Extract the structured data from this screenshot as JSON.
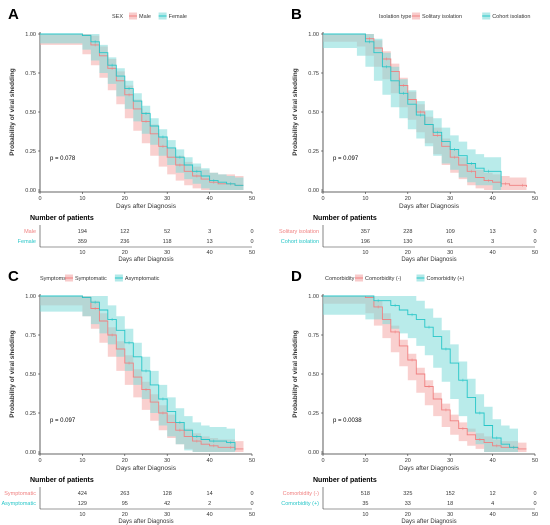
{
  "colors": {
    "group1": "#f08080",
    "group2": "#26c6c8",
    "band1": "#f4a9a8",
    "band2": "#7fdad9",
    "axis": "#333333",
    "text": "#333333"
  },
  "chart_data": [
    {
      "type": "line",
      "panel_label": "A",
      "legend_title": "SEX",
      "series": [
        {
          "name": "Male",
          "x": [
            0,
            10,
            12,
            14,
            16,
            18,
            20,
            22,
            24,
            26,
            28,
            30,
            32,
            34,
            36,
            38,
            40,
            42,
            44,
            46,
            48
          ],
          "y": [
            1.0,
            0.99,
            0.93,
            0.86,
            0.78,
            0.7,
            0.61,
            0.52,
            0.44,
            0.36,
            0.28,
            0.21,
            0.16,
            0.12,
            0.09,
            0.07,
            0.05,
            0.04,
            0.04,
            0.03,
            0.03
          ]
        },
        {
          "name": "Female",
          "x": [
            0,
            10,
            12,
            14,
            16,
            18,
            20,
            22,
            24,
            26,
            28,
            30,
            32,
            34,
            36,
            38,
            40,
            42,
            44,
            46,
            48
          ],
          "y": [
            1.0,
            0.99,
            0.95,
            0.88,
            0.8,
            0.73,
            0.65,
            0.57,
            0.49,
            0.41,
            0.34,
            0.27,
            0.21,
            0.16,
            0.12,
            0.09,
            0.06,
            0.05,
            0.04,
            0.03,
            0.03
          ]
        }
      ],
      "ci_width": [
        0.06,
        0.05
      ],
      "xlabel": "Days after Diagnosis",
      "ylabel": "Probability of viral shedding",
      "xlim": [
        0,
        50
      ],
      "ylim": [
        0,
        1
      ],
      "x_ticks": [
        "0",
        "10",
        "20",
        "30",
        "40",
        "50"
      ],
      "y_ticks": [
        "0.00",
        "0.25",
        "0.50",
        "0.75",
        "1.00"
      ],
      "p_value": "p = 0.078",
      "risk_table_title": "Number of patients",
      "risk_rows": [
        {
          "label": "Male",
          "counts": [
            "194",
            "122",
            "52",
            "3",
            "0"
          ]
        },
        {
          "label": "Female",
          "counts": [
            "359",
            "236",
            "118",
            "13",
            "0"
          ]
        }
      ]
    },
    {
      "type": "line",
      "panel_label": "B",
      "legend_title": "Isolation type",
      "series": [
        {
          "name": "Solitary isolation",
          "x": [
            0,
            8,
            10,
            12,
            14,
            16,
            18,
            20,
            22,
            24,
            26,
            28,
            30,
            32,
            34,
            36,
            38,
            40,
            42,
            44,
            46,
            48
          ],
          "y": [
            1.0,
            1.0,
            0.97,
            0.91,
            0.84,
            0.76,
            0.67,
            0.58,
            0.5,
            0.42,
            0.35,
            0.28,
            0.21,
            0.16,
            0.12,
            0.08,
            0.06,
            0.05,
            0.04,
            0.03,
            0.03,
            0.02
          ]
        },
        {
          "name": "Cohort isolation",
          "x": [
            0,
            8,
            10,
            12,
            14,
            16,
            18,
            20,
            22,
            24,
            26,
            28,
            30,
            32,
            34,
            36,
            38,
            40,
            42
          ],
          "y": [
            1.0,
            1.0,
            0.95,
            0.88,
            0.79,
            0.7,
            0.62,
            0.55,
            0.48,
            0.42,
            0.37,
            0.31,
            0.26,
            0.22,
            0.17,
            0.14,
            0.12,
            0.12,
            0.02
          ]
        }
      ],
      "ci_width": [
        0.05,
        0.09
      ],
      "xlabel": "Days after Diagnosis",
      "ylabel": "Probability of viral shedding",
      "xlim": [
        0,
        50
      ],
      "ylim": [
        0,
        1
      ],
      "x_ticks": [
        "0",
        "10",
        "20",
        "30",
        "40",
        "50"
      ],
      "y_ticks": [
        "0.00",
        "0.25",
        "0.50",
        "0.75",
        "1.00"
      ],
      "p_value": "p = 0.097",
      "risk_table_title": "Number of patients",
      "risk_rows": [
        {
          "label": "Solitary isolation",
          "counts": [
            "357",
            "228",
            "109",
            "13",
            "0"
          ]
        },
        {
          "label": "Cohort isolation",
          "counts": [
            "196",
            "130",
            "61",
            "3",
            "0"
          ]
        }
      ]
    },
    {
      "type": "line",
      "panel_label": "C",
      "legend_title": "Symptoms",
      "series": [
        {
          "name": "Symptomatic",
          "x": [
            0,
            10,
            12,
            14,
            16,
            18,
            20,
            22,
            24,
            26,
            28,
            30,
            32,
            34,
            36,
            38,
            40,
            42,
            44,
            46,
            48
          ],
          "y": [
            1.0,
            0.99,
            0.92,
            0.84,
            0.75,
            0.66,
            0.57,
            0.48,
            0.4,
            0.32,
            0.25,
            0.19,
            0.14,
            0.1,
            0.07,
            0.05,
            0.04,
            0.03,
            0.03,
            0.02,
            0.02
          ]
        },
        {
          "name": "Asymptomatic",
          "x": [
            0,
            10,
            12,
            14,
            16,
            18,
            20,
            22,
            24,
            26,
            28,
            30,
            32,
            34,
            36,
            38,
            40,
            42,
            44,
            46
          ],
          "y": [
            1.0,
            0.99,
            0.96,
            0.91,
            0.85,
            0.78,
            0.7,
            0.61,
            0.52,
            0.43,
            0.34,
            0.26,
            0.19,
            0.14,
            0.1,
            0.08,
            0.07,
            0.07,
            0.06,
            0.01
          ]
        }
      ],
      "ci_width": [
        0.05,
        0.09
      ],
      "xlabel": "Days after Diagnosis",
      "ylabel": "Probability of viral shedding",
      "xlim": [
        0,
        50
      ],
      "ylim": [
        0,
        1
      ],
      "x_ticks": [
        "0",
        "10",
        "20",
        "30",
        "40",
        "50"
      ],
      "y_ticks": [
        "0.00",
        "0.25",
        "0.50",
        "0.75",
        "1.00"
      ],
      "p_value": "p = 0.097",
      "risk_table_title": "Number of patients",
      "risk_rows": [
        {
          "label": "Symptomatic",
          "counts": [
            "424",
            "263",
            "128",
            "14",
            "0"
          ]
        },
        {
          "label": "Asymptomatic",
          "counts": [
            "129",
            "95",
            "42",
            "2",
            "0"
          ]
        }
      ]
    },
    {
      "type": "line",
      "panel_label": "D",
      "legend_title": "Comorbidity",
      "series": [
        {
          "name": "Comorbidity (-)",
          "x": [
            0,
            10,
            12,
            14,
            16,
            18,
            20,
            22,
            24,
            26,
            28,
            30,
            32,
            34,
            36,
            38,
            40,
            42,
            44,
            46,
            48
          ],
          "y": [
            1.0,
            0.99,
            0.93,
            0.85,
            0.77,
            0.68,
            0.59,
            0.5,
            0.42,
            0.34,
            0.27,
            0.2,
            0.15,
            0.11,
            0.08,
            0.06,
            0.04,
            0.03,
            0.03,
            0.02,
            0.02
          ]
        },
        {
          "name": "Comorbidity (+)",
          "x": [
            0,
            10,
            12,
            14,
            16,
            18,
            20,
            22,
            24,
            26,
            28,
            30,
            32,
            34,
            36,
            38,
            40,
            42,
            44,
            46
          ],
          "y": [
            1.0,
            1.0,
            0.97,
            0.97,
            0.94,
            0.91,
            0.88,
            0.85,
            0.8,
            0.74,
            0.66,
            0.57,
            0.46,
            0.35,
            0.25,
            0.17,
            0.09,
            0.05,
            0.03,
            0.03
          ]
        }
      ],
      "ci_width": [
        0.04,
        0.12
      ],
      "xlabel": "Days after Diagnosis",
      "ylabel": "Probability of viral shedding",
      "xlim": [
        0,
        50
      ],
      "ylim": [
        0,
        1
      ],
      "x_ticks": [
        "0",
        "10",
        "20",
        "30",
        "40",
        "50"
      ],
      "y_ticks": [
        "0.00",
        "0.25",
        "0.50",
        "0.75",
        "1.00"
      ],
      "p_value": "p = 0.0038",
      "risk_table_title": "Number of patients",
      "risk_rows": [
        {
          "label": "Comorbidity (-)",
          "counts": [
            "518",
            "325",
            "152",
            "12",
            "0"
          ]
        },
        {
          "label": "Comorbidity (+)",
          "counts": [
            "35",
            "33",
            "18",
            "4",
            "0"
          ]
        }
      ]
    }
  ]
}
